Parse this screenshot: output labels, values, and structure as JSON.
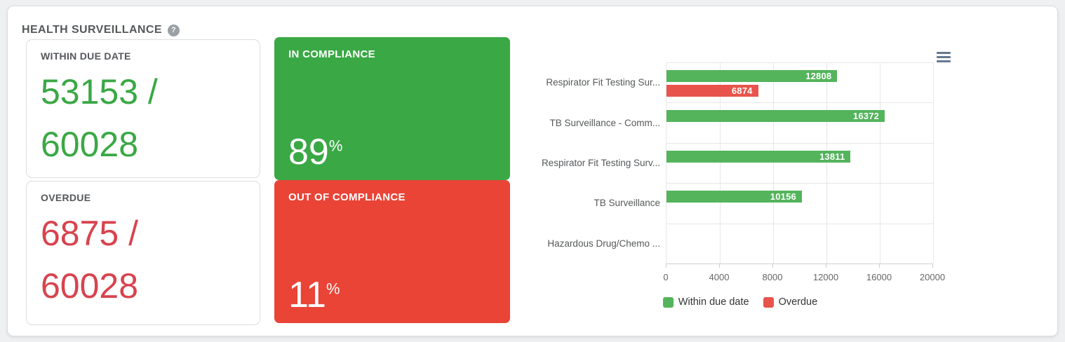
{
  "page": {
    "title": "HEALTH SURVEILLANCE",
    "help_icon_glyph": "?"
  },
  "stat_cards": [
    {
      "label": "WITHIN DUE DATE",
      "value": "53153 /\n60028",
      "numerator": 53153,
      "denominator": 60028,
      "color": "#3aa845"
    },
    {
      "label": "OVERDUE",
      "value": "6875 /\n60028",
      "numerator": 6875,
      "denominator": 60028,
      "color": "#d8434e"
    }
  ],
  "compliance_cards": [
    {
      "label": "IN COMPLIANCE",
      "value": "89",
      "unit": "%",
      "color": "#3aa845"
    },
    {
      "label": "OUT OF COMPLIANCE",
      "value": "11",
      "unit": "%",
      "color": "#ea4437"
    }
  ],
  "chart_data": {
    "type": "bar",
    "title": "",
    "categories": [
      "Respirator Fit Testing Sur...",
      "TB Surveillance - Comm...",
      "Respirator Fit Testing Surv...",
      "TB Surveillance",
      "Hazardous Drug/Chemo ..."
    ],
    "series": [
      {
        "name": "Within due date",
        "color": "#54b45c",
        "values": [
          12808,
          16372,
          13811,
          10156,
          0
        ]
      },
      {
        "name": "Overdue",
        "color": "#e8544b",
        "values": [
          6874,
          0,
          0,
          0,
          0
        ]
      }
    ],
    "xlim": [
      0,
      20000
    ],
    "xticks": [
      0,
      4000,
      8000,
      12000,
      16000,
      20000
    ],
    "bar_value_labels": [
      [
        12808,
        16372,
        13811,
        10156,
        null
      ],
      [
        6874,
        null,
        null,
        null,
        null
      ]
    ],
    "legend_position": "bottom",
    "grid": true,
    "bar_label_color": "#ffffff"
  }
}
